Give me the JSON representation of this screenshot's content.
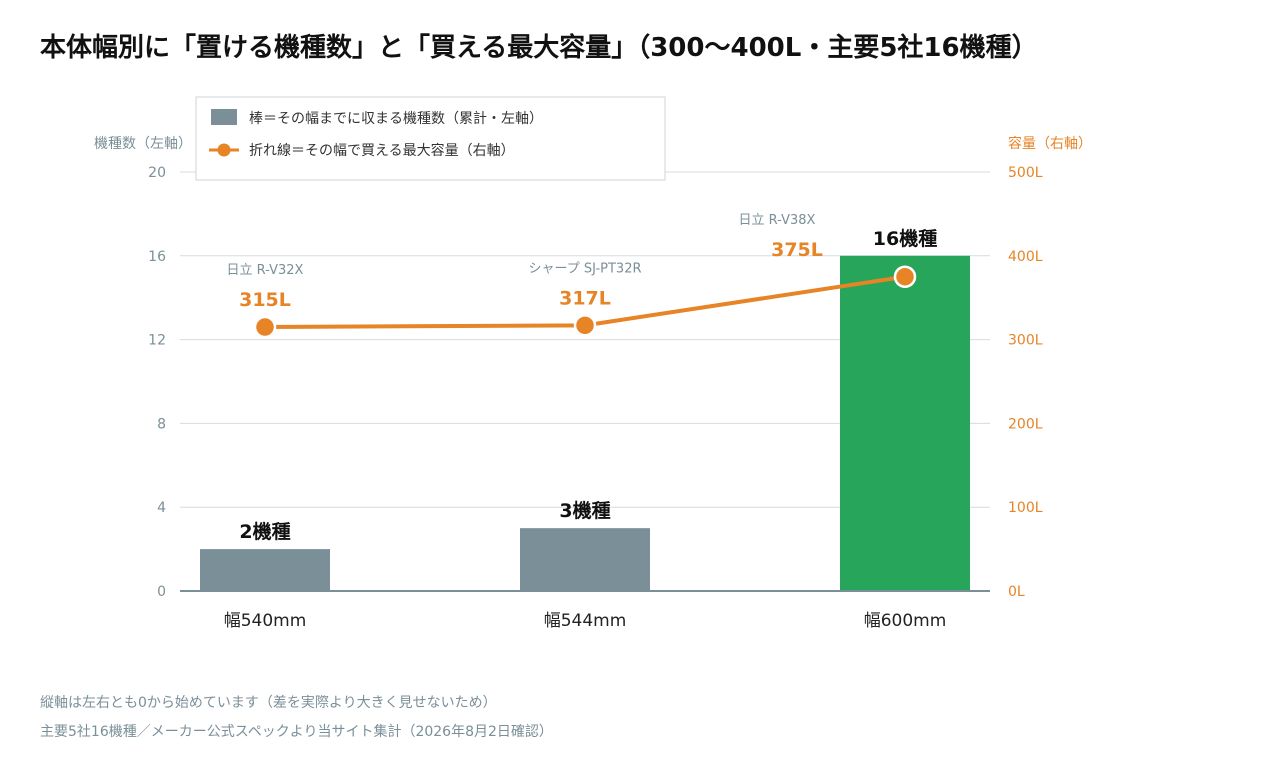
{
  "chart_data": {
    "type": "bar+line",
    "title": "本体幅別に「置ける機種数」と「買える最大容量」（300〜400L・主要5社16機種）",
    "categories": [
      "幅540mm",
      "幅544mm",
      "幅600mm"
    ],
    "left_axis": {
      "label": "機種数（左軸）",
      "ylim": [
        0,
        20
      ],
      "ticks": [
        "0",
        "4",
        "8",
        "12",
        "16",
        "20"
      ]
    },
    "right_axis": {
      "label": "容量（右軸）",
      "ylim": [
        0,
        500
      ],
      "ticks": [
        "0L",
        "100L",
        "200L",
        "300L",
        "400L",
        "500L"
      ]
    },
    "grid": true,
    "series": [
      {
        "name": "棒＝その幅までに収まる機種数（累計・左軸）",
        "kind": "bar",
        "axis": "left",
        "values": [
          2,
          3,
          16
        ],
        "labels": [
          "2機種",
          "3機種",
          "16機種"
        ],
        "colors": [
          "#7b8f99",
          "#7b8f99",
          "#27a55a"
        ]
      },
      {
        "name": "折れ線＝その幅で買える最大容量（右軸）",
        "kind": "line",
        "axis": "right",
        "values": [
          315,
          317,
          375
        ],
        "labels": [
          "315L",
          "317L",
          "375L"
        ],
        "models": [
          "日立 R-V32X",
          "シャープ SJ-PT32R",
          "日立 R-V38X"
        ],
        "color": "#e68426"
      }
    ],
    "legend_position": "top-left"
  },
  "notes": [
    "縦軸は左右とも0から始めています（差を実際より大きく見せないため）",
    "主要5社16機種／メーカー公式スペックより当サイト集計（2026年8月2日確認）"
  ]
}
